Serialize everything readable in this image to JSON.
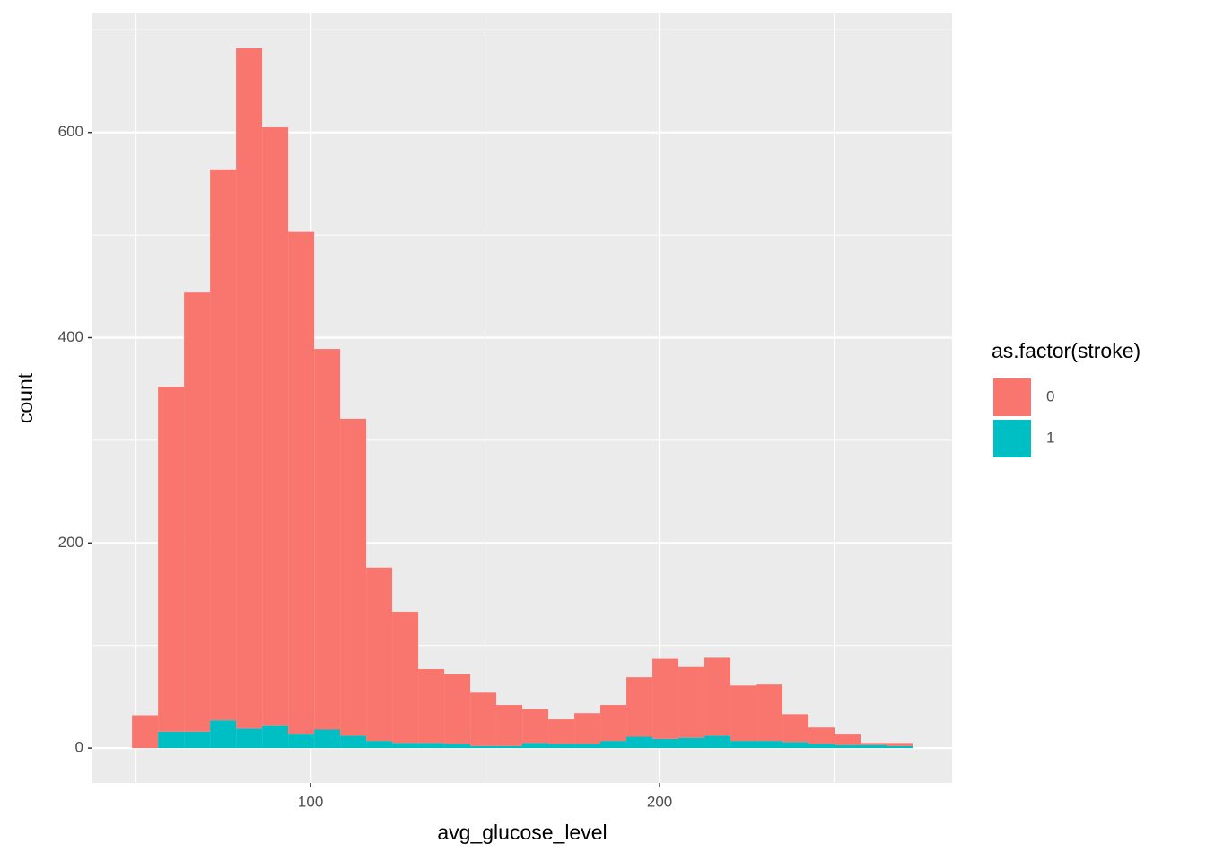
{
  "chart_data": {
    "type": "histogram",
    "x_label": "avg_glucose_level",
    "y_label": "count",
    "legend_title": "as.factor(stroke)",
    "legend_position": "right",
    "bins": [
      48.84,
      56.3,
      63.75,
      71.21,
      78.66,
      86.12,
      93.57,
      101.03,
      108.48,
      115.94,
      123.39,
      130.85,
      138.3,
      145.76,
      153.21,
      160.67,
      168.12,
      175.58,
      183.03,
      190.49,
      197.94,
      205.4,
      212.85,
      220.31,
      227.76,
      235.22,
      242.67,
      250.13,
      257.58,
      265.04,
      272.49
    ],
    "series": [
      {
        "name": "0",
        "color": "#F8766D",
        "values": [
          32,
          336,
          428,
          537,
          663,
          583,
          489,
          371,
          309,
          169,
          128,
          72,
          68,
          52,
          40,
          33,
          24,
          30,
          35,
          58,
          78,
          69,
          76,
          54,
          55,
          27,
          16,
          11,
          2,
          3
        ]
      },
      {
        "name": "1",
        "color": "#00BFC4",
        "values": [
          0,
          16,
          16,
          27,
          19,
          22,
          14,
          18,
          12,
          7,
          5,
          5,
          4,
          2,
          2,
          5,
          4,
          4,
          7,
          11,
          9,
          10,
          12,
          7,
          7,
          6,
          4,
          3,
          3,
          2
        ]
      }
    ],
    "stacked": true,
    "xlim": [
      37.5,
      283.8
    ],
    "xticks": [
      100,
      200
    ],
    "ylim": [
      -34,
      716
    ],
    "yticks": [
      0,
      200,
      400,
      600
    ],
    "grid": true
  }
}
